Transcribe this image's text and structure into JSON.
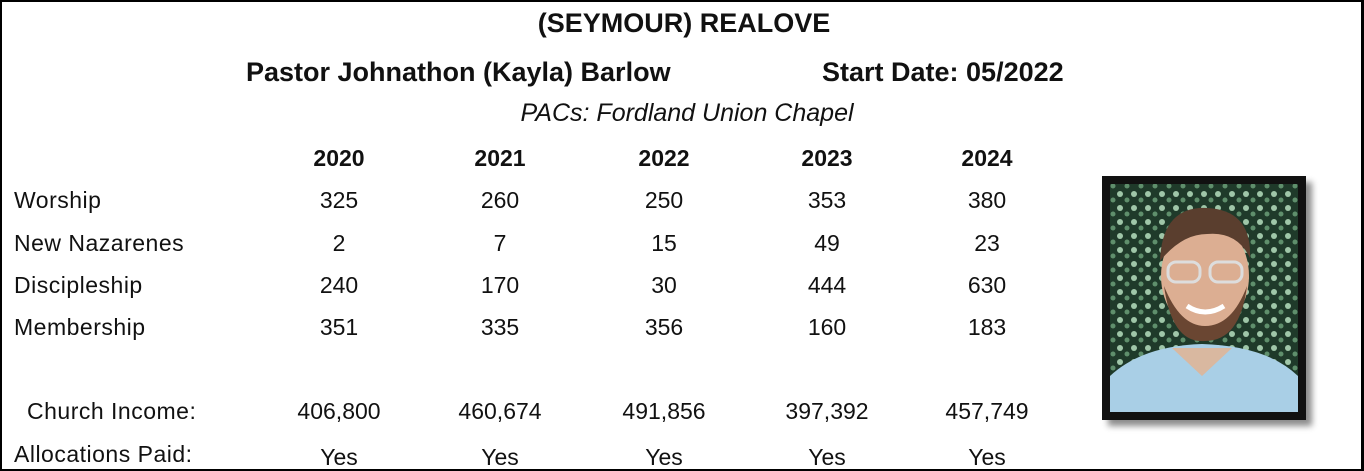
{
  "header": {
    "title": "(SEYMOUR) REALOVE",
    "pastor": "Pastor Johnathon (Kayla) Barlow",
    "start_date": "Start Date: 05/2022",
    "pacs": "PACs: Fordland Union Chapel"
  },
  "table": {
    "columns": [
      "2020",
      "2021",
      "2022",
      "2023",
      "2024"
    ],
    "rows": [
      {
        "label": "Worship",
        "values": [
          "325",
          "260",
          "250",
          "353",
          "380"
        ]
      },
      {
        "label": "New Nazarenes",
        "values": [
          "2",
          "7",
          "15",
          "49",
          "23"
        ]
      },
      {
        "label": "Discipleship",
        "values": [
          "240",
          "170",
          "30",
          "444",
          "630"
        ]
      },
      {
        "label": "Membership",
        "values": [
          "351",
          "335",
          "356",
          "160",
          "183"
        ]
      },
      {
        "label": "Church Income:",
        "values": [
          "406,800",
          "460,674",
          "491,856",
          "397,392",
          "457,749"
        ]
      },
      {
        "label": "Allocations Paid:",
        "values": [
          "Yes",
          "Yes",
          "Yes",
          "Yes",
          "Yes"
        ]
      }
    ]
  }
}
